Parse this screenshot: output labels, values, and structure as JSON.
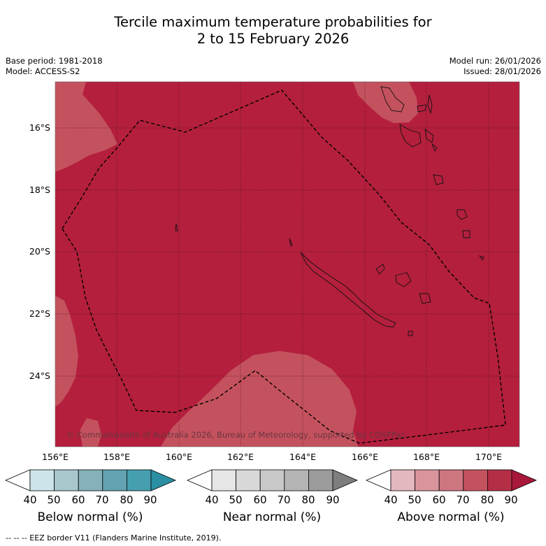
{
  "title": {
    "line1": "Tercile maximum temperature probabilities for",
    "line2": "2 to 15 February 2026"
  },
  "meta": {
    "base_period": "Base period: 1981-2018",
    "model": "Model: ACCESS-S2",
    "model_run": "Model run: 26/01/2026",
    "issued": "Issued: 28/01/2026"
  },
  "map": {
    "longitude_labels": [
      "156°E",
      "158°E",
      "160°E",
      "162°E",
      "164°E",
      "166°E",
      "168°E",
      "170°E"
    ],
    "latitude_labels": [
      "16°S",
      "18°S",
      "20°S",
      "22°S",
      "24°S"
    ],
    "copyright": "© Commonwealth of Australia 2026, Bureau of Meteorology, supported by COSPPac",
    "colors": {
      "above_80_90": "#b41f3d",
      "above_70_80": "#c4525e",
      "eez_border": "#000000"
    }
  },
  "colorbars": [
    {
      "label": "Below normal (%)",
      "ticks": [
        "40",
        "50",
        "60",
        "70",
        "80",
        "90"
      ],
      "colors": [
        "#ffffff",
        "#cde5ea",
        "#a7c7cd",
        "#86b1bb",
        "#62a2b1",
        "#469faf",
        "#2a8fa3"
      ]
    },
    {
      "label": "Near normal (%)",
      "ticks": [
        "40",
        "50",
        "60",
        "70",
        "80",
        "90"
      ],
      "colors": [
        "#ffffff",
        "#e6e6e6",
        "#d8d8d8",
        "#c8c8c8",
        "#b4b4b4",
        "#9c9c9c",
        "#7e7e7e"
      ]
    },
    {
      "label": "Above normal (%)",
      "ticks": [
        "40",
        "50",
        "60",
        "70",
        "80",
        "90"
      ],
      "colors": [
        "#ffffff",
        "#e3b8bf",
        "#d9949c",
        "#cd7680",
        "#c4525e",
        "#b42f45",
        "#a8183a"
      ]
    }
  ],
  "footnote": "--  --  -- EEZ border V11 (Flanders Marine Institute, 2019)."
}
